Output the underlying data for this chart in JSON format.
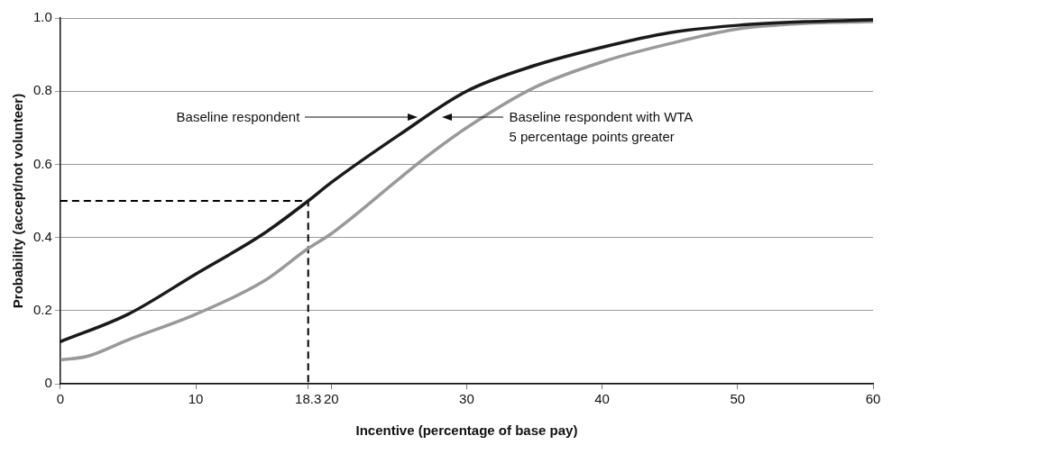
{
  "chart_data": {
    "type": "line",
    "xlabel": "Incentive (percentage of base pay)",
    "ylabel": "Probability (accept/not volunteer)",
    "xlim": [
      0,
      60
    ],
    "xticks": [
      0,
      10,
      18.3,
      20,
      30,
      40,
      50,
      60
    ],
    "ylim": [
      0,
      1
    ],
    "yticks": [
      0,
      0.2,
      0.4,
      0.6,
      0.8,
      {
        "value": 1,
        "label": "1.0"
      }
    ],
    "grid": "y",
    "legend": false,
    "marker": "none",
    "series": [
      {
        "color": "#1a1a1a",
        "x": [
          0,
          5,
          10,
          15,
          18.3,
          20,
          25,
          30,
          35,
          40,
          45,
          50,
          55,
          60
        ],
        "values": [
          0.115,
          0.19,
          0.3,
          0.41,
          0.5,
          0.55,
          0.68,
          0.8,
          0.87,
          0.92,
          0.96,
          0.98,
          0.99,
          0.995
        ]
      },
      {
        "color": "#999999",
        "x": [
          0,
          2,
          5,
          10,
          15,
          18.3,
          20,
          25,
          27,
          30,
          35,
          40,
          45,
          50,
          55,
          60
        ],
        "values": [
          0.065,
          0.075,
          0.12,
          0.19,
          0.28,
          0.37,
          0.41,
          0.56,
          0.62,
          0.7,
          0.81,
          0.88,
          0.93,
          0.97,
          0.985,
          0.99
        ]
      },
      {
        "color": "#000000",
        "line_style": "dashed",
        "x": [
          0,
          18.3,
          18.3
        ],
        "values": [
          0.5,
          0.5,
          0
        ]
      }
    ],
    "annotations": [
      "Baseline respondent",
      "Baseline respondent with WTA\n5 percentage points greater"
    ]
  }
}
